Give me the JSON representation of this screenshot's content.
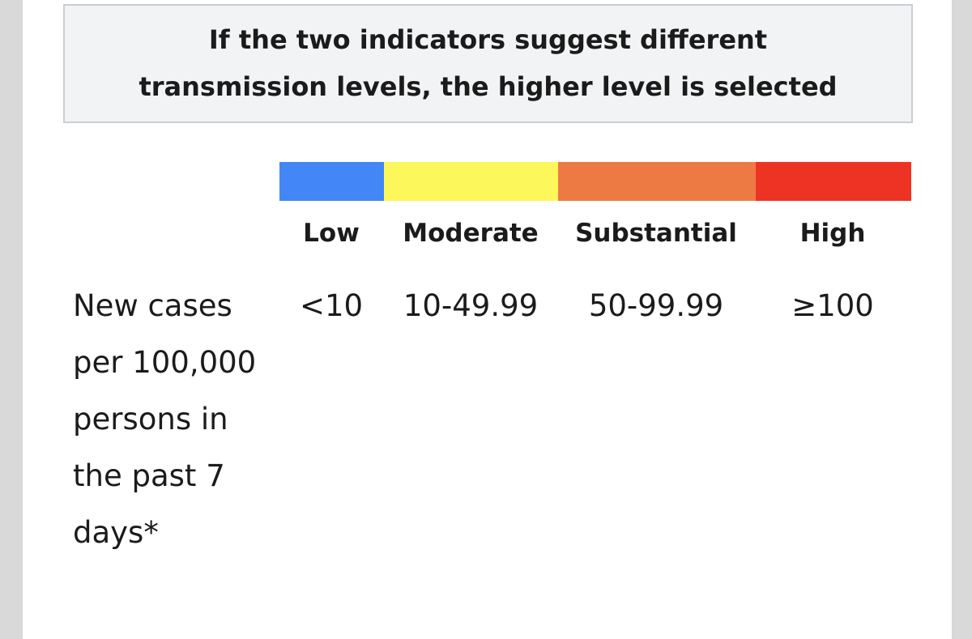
{
  "note": {
    "line1": "If the two indicators suggest different",
    "line2": "transmission levels, the higher level is selected"
  },
  "table": {
    "levels": [
      {
        "name": "Low",
        "color": "#4287f5"
      },
      {
        "name": "Moderate",
        "color": "#fcf75a"
      },
      {
        "name": "Substantial",
        "color": "#ee7a43"
      },
      {
        "name": "High",
        "color": "#ec3324"
      }
    ],
    "row": {
      "label": "New cases per 100,000 persons in the past 7 days*",
      "cells": [
        "<10",
        "10-49.99",
        "50-99.99",
        "≥100"
      ]
    }
  }
}
